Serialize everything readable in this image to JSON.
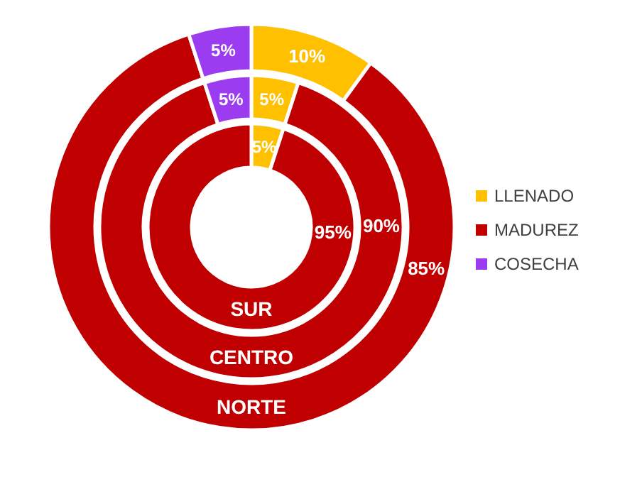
{
  "chart_data": {
    "type": "donut",
    "categories": [
      "LLENADO",
      "MADUREZ",
      "COSECHA"
    ],
    "colors": [
      "#ffc000",
      "#c00000",
      "#9c3cf0"
    ],
    "series": [
      {
        "name": "SUR",
        "values": [
          5,
          95,
          0
        ],
        "value_labels": [
          "5%",
          "95%",
          null
        ]
      },
      {
        "name": "CENTRO",
        "values": [
          5,
          90,
          5
        ],
        "value_labels": [
          "5%",
          "90%",
          "5%"
        ]
      },
      {
        "name": "NORTE",
        "values": [
          10,
          85,
          5
        ],
        "value_labels": [
          "10%",
          "85%",
          "5%"
        ]
      }
    ],
    "legend": "right"
  }
}
